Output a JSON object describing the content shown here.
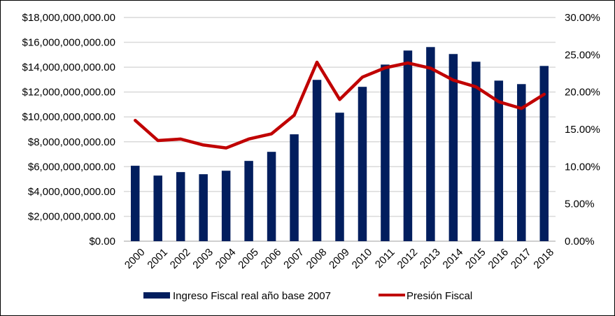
{
  "chart_data": {
    "type": "bar+line",
    "categories": [
      "2000",
      "2001",
      "2002",
      "2003",
      "2004",
      "2005",
      "2006",
      "2007",
      "2008",
      "2009",
      "2010",
      "2011",
      "2012",
      "2013",
      "2014",
      "2015",
      "2016",
      "2017",
      "2018"
    ],
    "series": [
      {
        "name": "Ingreso Fiscal real año base 2007",
        "type": "bar",
        "axis": "left",
        "color": "#021E5E",
        "values": [
          6070000000,
          5280000000,
          5560000000,
          5390000000,
          5670000000,
          6460000000,
          7190000000,
          8600000000,
          12980000000,
          10340000000,
          12420000000,
          14210000000,
          15340000000,
          15620000000,
          15060000000,
          14440000000,
          12920000000,
          12640000000,
          14100000000
        ]
      },
      {
        "name": "Presión Fiscal",
        "type": "line",
        "axis": "right",
        "color": "#C00000",
        "values": [
          0.162,
          0.135,
          0.137,
          0.129,
          0.125,
          0.137,
          0.144,
          0.169,
          0.24,
          0.19,
          0.22,
          0.2325,
          0.239,
          0.232,
          0.216,
          0.207,
          0.187,
          0.178,
          0.197
        ]
      }
    ],
    "left_axis": {
      "min": 0,
      "max": 18000000000,
      "step": 2000000000,
      "tick_labels": [
        "$0.00",
        "$2,000,000,000.00",
        "$4,000,000,000.00",
        "$6,000,000,000.00",
        "$8,000,000,000.00",
        "$10,000,000,000.00",
        "$12,000,000,000.00",
        "$14,000,000,000.00",
        "$16,000,000,000.00",
        "$18,000,000,000.00"
      ]
    },
    "right_axis": {
      "min": 0,
      "max": 0.3,
      "step": 0.05,
      "tick_labels": [
        "0.00%",
        "5.00%",
        "10.00%",
        "15.00%",
        "20.00%",
        "25.00%",
        "30.00%"
      ]
    },
    "grid": true,
    "legend_position": "bottom"
  }
}
